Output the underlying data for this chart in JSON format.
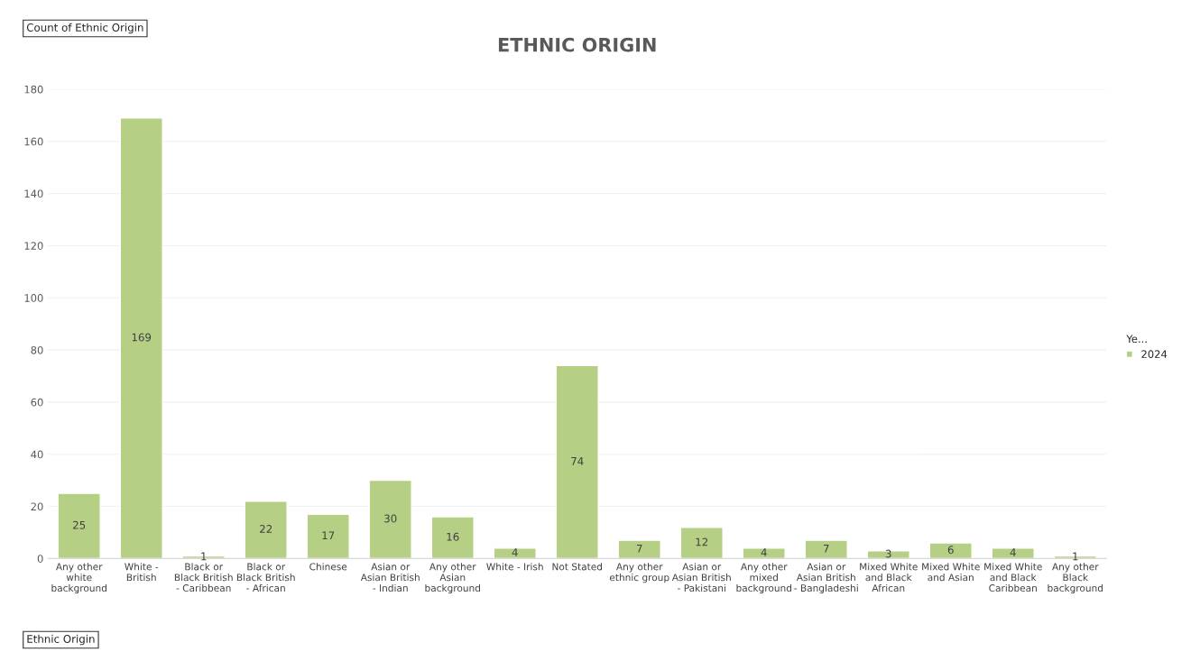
{
  "chart_data": {
    "type": "bar",
    "title": "ETHNIC ORIGIN",
    "xlabel": "Ethnic Origin",
    "annotations": [
      "Count of Ethnic Origin"
    ],
    "legend_title": "Ye...",
    "categories": [
      "Any other white background",
      "White - British",
      "Black or Black British - Caribbean",
      "Black or Black British - African",
      "Chinese",
      "Asian or Asian British - Indian",
      "Any other Asian background",
      "White - Irish",
      "Not Stated",
      "Any other ethnic group",
      "Asian or Asian British - Pakistani",
      "Any other mixed background",
      "Asian or Asian British - Bangladeshi",
      "Mixed White and Black African",
      "Mixed White and Asian",
      "Mixed White and Black Caribbean",
      "Any other Black background"
    ],
    "series": [
      {
        "name": "2024",
        "color": "#b5cf85",
        "values": [
          25,
          169,
          1,
          22,
          17,
          30,
          16,
          4,
          74,
          7,
          12,
          4,
          7,
          3,
          6,
          4,
          1
        ]
      }
    ],
    "ylim": [
      0,
      180
    ],
    "yticks": [
      0,
      20,
      40,
      60,
      80,
      100,
      120,
      140,
      160,
      180
    ],
    "grid": "y",
    "legend": "right",
    "data_labels": true
  }
}
